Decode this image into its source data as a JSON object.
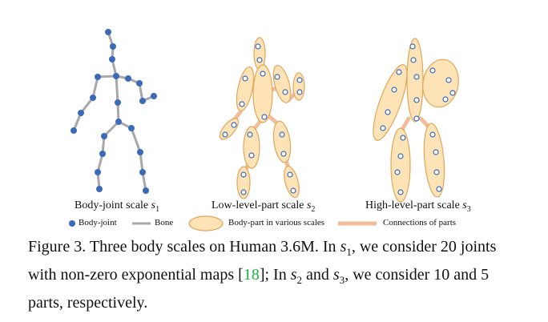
{
  "panels": [
    {
      "name": "Body-joint scale",
      "sub": "s",
      "subscript": "1"
    },
    {
      "name": "Low-level-part scale",
      "sub": "s",
      "subscript": "2"
    },
    {
      "name": "High-level-part scale",
      "sub": "s",
      "subscript": "3"
    }
  ],
  "legend": {
    "joint": "Body-joint",
    "bone": "Bone",
    "part": "Body-part in various scales",
    "connection": "Connections of parts"
  },
  "caption": {
    "prefix": "Figure 3. Three body scales on Human 3.6M. In ",
    "v1": "s",
    "v1_sub": "1",
    "mid1": ", we consider 20 joints with non-zero exponential maps [",
    "ref": "18",
    "mid2": "]; In ",
    "v2": "s",
    "v2_sub": "2",
    "and": " and ",
    "v3": "s",
    "v3_sub": "3",
    "suffix": ", we consider 10 and 5 parts, respectively."
  },
  "colors": {
    "joint": "#3a6ab8",
    "bone": "#a8a8a8",
    "part_fill": "#fde3b6",
    "part_stroke": "#e2a55a",
    "connection": "#f2bd9a",
    "ref": "#18b83a"
  }
}
